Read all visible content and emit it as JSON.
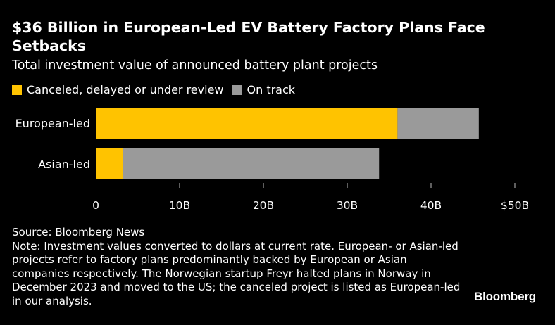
{
  "title": "$36 Billion in European-Led EV Battery Factory Plans Face Setbacks",
  "subtitle": "Total investment value of announced battery plant projects",
  "legend": [
    {
      "label": "Canceled, delayed or under review",
      "color": "#ffc300"
    },
    {
      "label": "On track",
      "color": "#9a9a9a"
    }
  ],
  "chart_data": {
    "type": "bar",
    "orientation": "horizontal",
    "stacked": true,
    "categories": [
      "European-led",
      "Asian-led"
    ],
    "series": [
      {
        "name": "Canceled, delayed or under review",
        "color": "#ffc300",
        "values": [
          36,
          3.2
        ]
      },
      {
        "name": "On track",
        "color": "#9a9a9a",
        "values": [
          9.7,
          30.6
        ]
      }
    ],
    "xlim": [
      0,
      50
    ],
    "x_ticks": [
      0,
      10,
      20,
      30,
      40,
      50
    ],
    "x_tick_labels": [
      "0",
      "10B",
      "20B",
      "30B",
      "40B",
      "$50B"
    ],
    "title": "$36 Billion in European-Led EV Battery Factory Plans Face Setbacks",
    "subtitle": "Total investment value of announced battery plant projects",
    "xlabel": "",
    "ylabel": ""
  },
  "source": "Source: Bloomberg News",
  "note": "Note: Investment values converted to dollars at current rate. European- or Asian-led projects refer to factory plans predominantly backed by European or Asian companies respectively. The Norwegian startup Freyr halted plans in Norway in December 2023 and moved to the US; the canceled project is listed as European-led in our analysis.",
  "brand": "Bloomberg"
}
